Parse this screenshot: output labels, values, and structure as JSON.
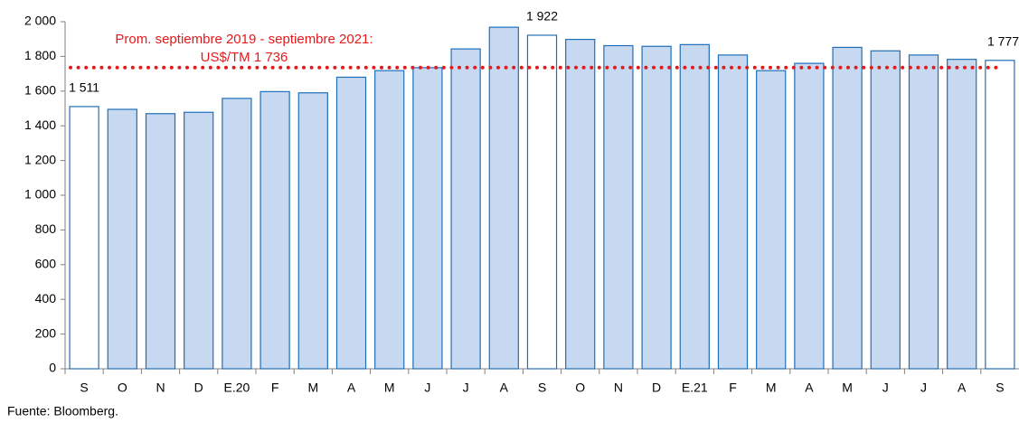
{
  "chart_data": {
    "type": "bar",
    "categories": [
      "S",
      "O",
      "N",
      "D",
      "E.20",
      "F",
      "M",
      "A",
      "M",
      "J",
      "J",
      "A",
      "S",
      "O",
      "N",
      "D",
      "E.21",
      "F",
      "M",
      "A",
      "M",
      "J",
      "J",
      "A",
      "S"
    ],
    "values": [
      1511,
      1495,
      1470,
      1478,
      1558,
      1597,
      1590,
      1680,
      1718,
      1735,
      1843,
      1968,
      1922,
      1898,
      1862,
      1858,
      1868,
      1808,
      1718,
      1760,
      1852,
      1832,
      1808,
      1783,
      1777
    ],
    "value_labels": [
      "1 511",
      null,
      null,
      null,
      null,
      null,
      null,
      null,
      null,
      null,
      null,
      null,
      "1 922",
      null,
      null,
      null,
      null,
      null,
      null,
      null,
      null,
      null,
      null,
      null,
      "1 777"
    ],
    "colors": [
      "#ffffff",
      "#c6d9f1",
      "#c6d9f1",
      "#c6d9f1",
      "#c6d9f1",
      "#c6d9f1",
      "#c6d9f1",
      "#c6d9f1",
      "#c6d9f1",
      "#c6d9f1",
      "#c6d9f1",
      "#c6d9f1",
      "#ffffff",
      "#c6d9f1",
      "#c6d9f1",
      "#c6d9f1",
      "#c6d9f1",
      "#c6d9f1",
      "#c6d9f1",
      "#c6d9f1",
      "#c6d9f1",
      "#c6d9f1",
      "#c6d9f1",
      "#c6d9f1",
      "#ffffff"
    ],
    "edgecolor": "#1f6fb8",
    "ylim": [
      0,
      2000
    ],
    "yticks": [
      0,
      200,
      400,
      600,
      800,
      {
        "value": 1000,
        "label": "1 000"
      },
      {
        "value": 1200,
        "label": "1 200"
      },
      {
        "value": 1400,
        "label": "1 400"
      },
      {
        "value": 1600,
        "label": "1 600"
      },
      {
        "value": 1800,
        "label": "1 800"
      },
      {
        "value": 2000,
        "label": "2 000"
      }
    ],
    "reference": {
      "value": 1736,
      "color": "#e31a1c",
      "label": [
        "Prom. septiembre 2019 - septiembre 2021:",
        "US$/TM 1 736"
      ]
    },
    "source": "Fuente: Bloomberg."
  }
}
